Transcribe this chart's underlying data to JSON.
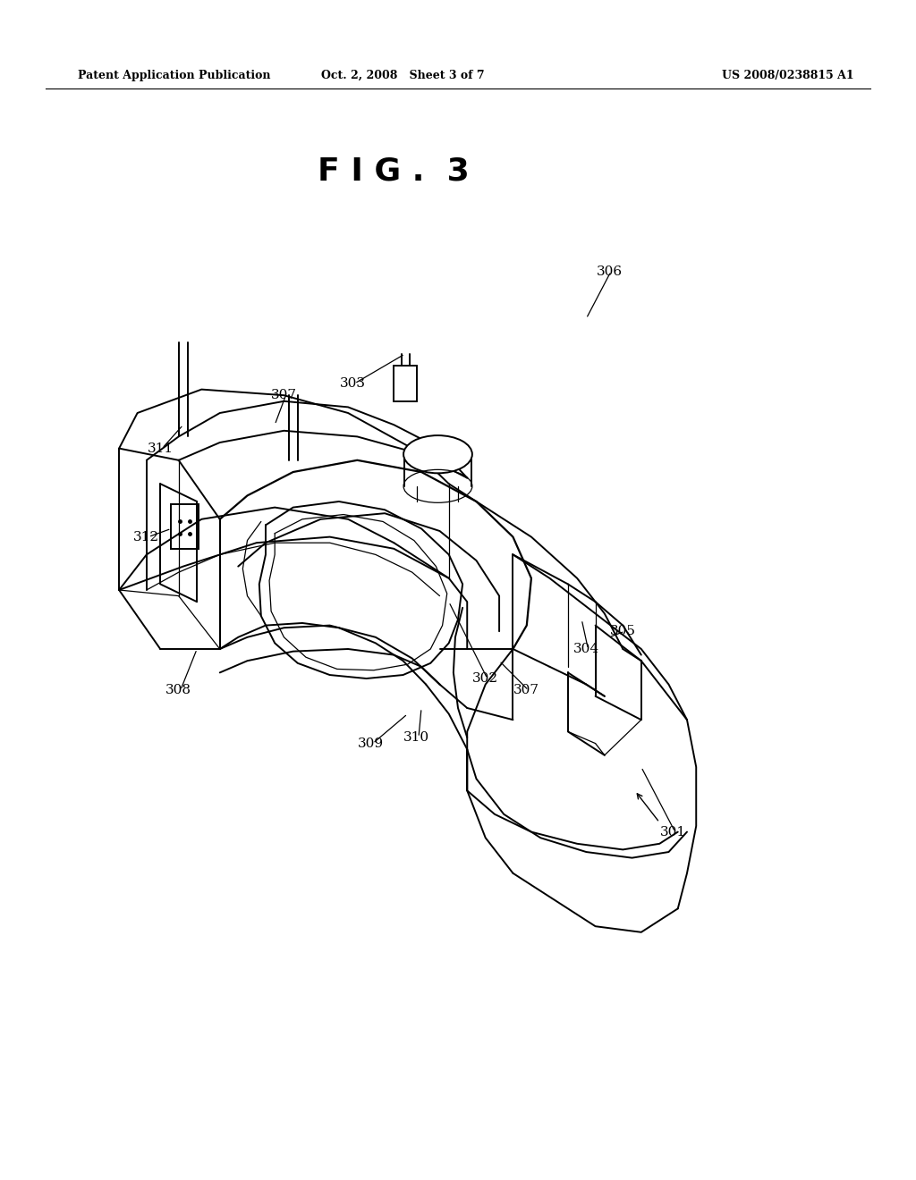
{
  "background_color": "#ffffff",
  "header_left": "Patent Application Publication",
  "header_center": "Oct. 2, 2008   Sheet 3 of 7",
  "header_right": "US 2008/0238815 A1",
  "fig_title": "F I G .  3",
  "page_width": 10.24,
  "page_height": 13.2,
  "dpi": 100
}
